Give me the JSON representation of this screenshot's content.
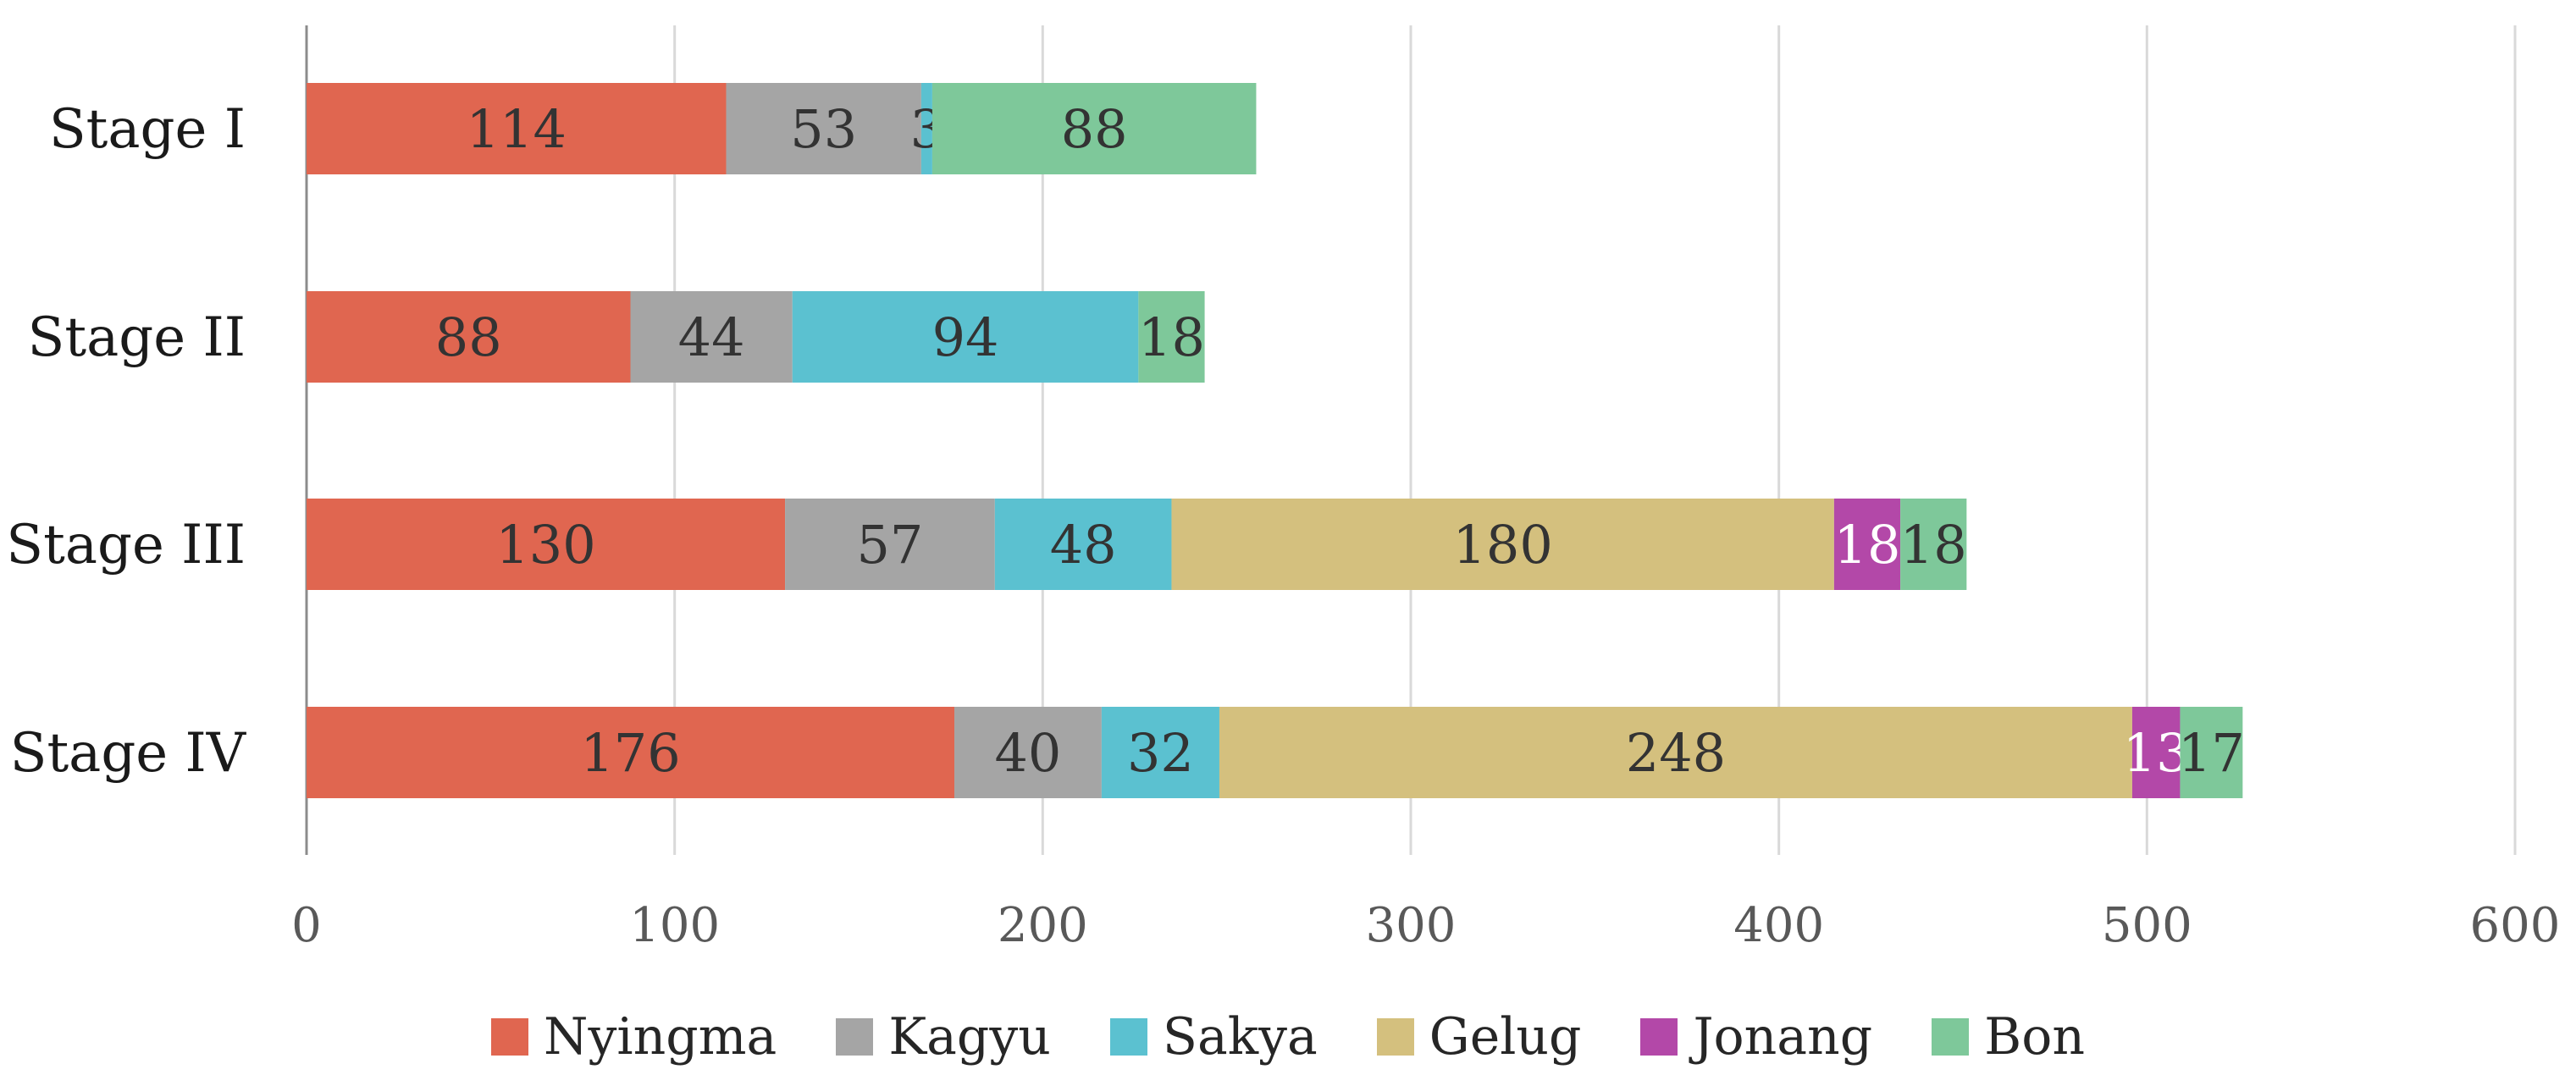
{
  "chart_data": {
    "type": "bar",
    "orientation": "horizontal",
    "stacked": true,
    "title": "",
    "xlabel": "",
    "ylabel": "",
    "categories": [
      "Stage I",
      "Stage II",
      "Stage III",
      "Stage IV"
    ],
    "xlim": [
      0,
      600
    ],
    "x_ticks": [
      "0",
      "100",
      "200",
      "300",
      "400",
      "500",
      "600"
    ],
    "grid": "vertical",
    "legend_position": "bottom",
    "series": [
      {
        "name": "Nyingma",
        "color": "#e06650",
        "values": [
          114,
          88,
          130,
          176
        ],
        "labels": [
          "114",
          "88",
          "130",
          "176"
        ],
        "label_color": "#333333"
      },
      {
        "name": "Kagyu",
        "color": "#a5a5a5",
        "values": [
          53,
          44,
          57,
          40
        ],
        "labels": [
          "53",
          "44",
          "57",
          "40"
        ],
        "label_color": "#333333"
      },
      {
        "name": "Sakya",
        "color": "#5bc1d0",
        "values": [
          3,
          94,
          48,
          32
        ],
        "labels": [
          "3",
          "94",
          "48",
          "32"
        ],
        "label_color": "#333333"
      },
      {
        "name": "Gelug",
        "color": "#d4c07e",
        "values": [
          0,
          0,
          180,
          248
        ],
        "labels": [
          "",
          "",
          "180",
          "248"
        ],
        "label_color": "#333333"
      },
      {
        "name": "Jonang",
        "color": "#b348a8",
        "values": [
          0,
          0,
          18,
          13
        ],
        "labels": [
          "",
          "",
          "18",
          "13"
        ],
        "label_color": "#ffffff"
      },
      {
        "name": "Bon",
        "color": "#7ec89a",
        "values": [
          88,
          18,
          18,
          17
        ],
        "labels": [
          "88",
          "18",
          "18",
          "17"
        ],
        "label_color": "#333333"
      }
    ]
  }
}
